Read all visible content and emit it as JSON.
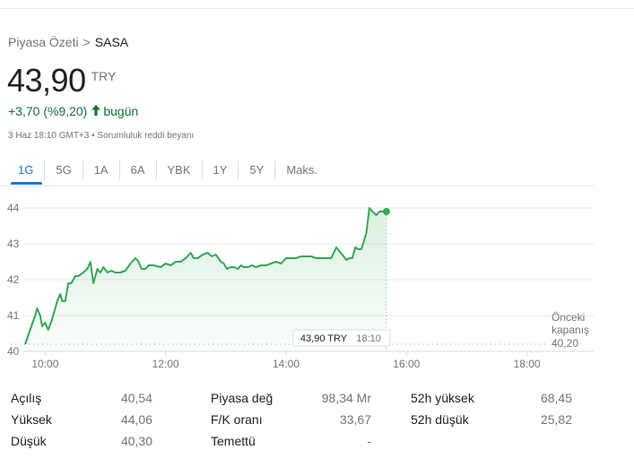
{
  "breadcrumb": {
    "parent": "Piyasa Özeti",
    "separator": ">",
    "current": "SASA"
  },
  "price": {
    "value": "43,90",
    "currency": "TRY"
  },
  "change": {
    "text": "+3,70 (%9,20)",
    "period": "bugün",
    "color": "#137333",
    "icon": "arrow-up-icon"
  },
  "meta": {
    "date": "3 Haz 18:10 GMT+3",
    "bullet": "•",
    "disclaimer": "Sorumluluk reddi beyanı"
  },
  "tabs": [
    {
      "label": "1G",
      "active": true
    },
    {
      "label": "5G",
      "active": false
    },
    {
      "label": "1A",
      "active": false
    },
    {
      "label": "6A",
      "active": false
    },
    {
      "label": "YBK",
      "active": false
    },
    {
      "label": "1Y",
      "active": false
    },
    {
      "label": "5Y",
      "active": false
    },
    {
      "label": "Maks.",
      "active": false
    }
  ],
  "chart_data": {
    "type": "area",
    "x_unit": "time of day",
    "xticks": [
      "10:00",
      "12:00",
      "14:00",
      "16:00",
      "18:00"
    ],
    "yticks": [
      "40",
      "41",
      "42",
      "43",
      "44"
    ],
    "ylim": [
      40,
      44.3
    ],
    "xlim": [
      "09:40",
      "18:20"
    ],
    "color": "#34a853",
    "previous_close": {
      "label_line1": "Önceki",
      "label_line2": "kapanış",
      "value": 40.2,
      "value_label": "40,20"
    },
    "tooltip": {
      "price": "43,90 TRY",
      "time": "18:10"
    },
    "series": [
      {
        "values": [
          [
            "09:40",
            40.2
          ],
          [
            "09:45",
            40.6
          ],
          [
            "09:50",
            41.0
          ],
          [
            "09:52",
            41.2
          ],
          [
            "09:55",
            41.0
          ],
          [
            "09:57",
            40.7
          ],
          [
            "10:00",
            40.8
          ],
          [
            "10:03",
            40.6
          ],
          [
            "10:07",
            40.9
          ],
          [
            "10:12",
            41.4
          ],
          [
            "10:15",
            41.6
          ],
          [
            "10:17",
            41.4
          ],
          [
            "10:20",
            41.4
          ],
          [
            "10:23",
            41.9
          ],
          [
            "10:26",
            41.9
          ],
          [
            "10:30",
            42.1
          ],
          [
            "10:33",
            42.1
          ],
          [
            "10:38",
            42.2
          ],
          [
            "10:42",
            42.3
          ],
          [
            "10:45",
            42.5
          ],
          [
            "10:48",
            41.9
          ],
          [
            "10:52",
            42.3
          ],
          [
            "10:55",
            42.2
          ],
          [
            "10:58",
            42.35
          ],
          [
            "11:02",
            42.2
          ],
          [
            "11:06",
            42.25
          ],
          [
            "11:10",
            42.2
          ],
          [
            "11:15",
            42.2
          ],
          [
            "11:20",
            42.25
          ],
          [
            "11:25",
            42.45
          ],
          [
            "11:30",
            42.6
          ],
          [
            "11:33",
            42.5
          ],
          [
            "11:36",
            42.3
          ],
          [
            "11:40",
            42.3
          ],
          [
            "11:43",
            42.4
          ],
          [
            "11:48",
            42.4
          ],
          [
            "11:55",
            42.35
          ],
          [
            "12:00",
            42.45
          ],
          [
            "12:05",
            42.4
          ],
          [
            "12:10",
            42.5
          ],
          [
            "12:15",
            42.5
          ],
          [
            "12:20",
            42.6
          ],
          [
            "12:25",
            42.75
          ],
          [
            "12:28",
            42.6
          ],
          [
            "12:32",
            42.6
          ],
          [
            "12:37",
            42.7
          ],
          [
            "12:42",
            42.75
          ],
          [
            "12:46",
            42.65
          ],
          [
            "12:50",
            42.7
          ],
          [
            "12:55",
            42.5
          ],
          [
            "12:58",
            42.45
          ],
          [
            "13:01",
            42.3
          ],
          [
            "13:05",
            42.35
          ],
          [
            "13:08",
            42.35
          ],
          [
            "13:12",
            42.3
          ],
          [
            "13:15",
            42.4
          ],
          [
            "13:18",
            42.35
          ],
          [
            "13:22",
            42.35
          ],
          [
            "13:26",
            42.4
          ],
          [
            "13:30",
            42.35
          ],
          [
            "13:35",
            42.4
          ],
          [
            "13:40",
            42.4
          ],
          [
            "13:45",
            42.45
          ],
          [
            "13:50",
            42.5
          ],
          [
            "13:55",
            42.45
          ],
          [
            "14:00",
            42.6
          ],
          [
            "14:05",
            42.6
          ],
          [
            "14:10",
            42.6
          ],
          [
            "14:15",
            42.65
          ],
          [
            "14:20",
            42.65
          ],
          [
            "14:25",
            42.65
          ],
          [
            "14:30",
            42.6
          ],
          [
            "14:35",
            42.6
          ],
          [
            "14:40",
            42.6
          ],
          [
            "14:45",
            42.6
          ],
          [
            "14:50",
            42.9
          ],
          [
            "14:53",
            42.8
          ],
          [
            "14:56",
            42.7
          ],
          [
            "15:00",
            42.55
          ],
          [
            "15:03",
            42.6
          ],
          [
            "15:06",
            42.6
          ],
          [
            "15:09",
            42.9
          ],
          [
            "15:12",
            42.85
          ],
          [
            "15:15",
            42.85
          ],
          [
            "15:20",
            43.3
          ],
          [
            "15:23",
            44.0
          ],
          [
            "15:26",
            43.9
          ],
          [
            "15:30",
            43.8
          ],
          [
            "15:33",
            43.9
          ],
          [
            "15:36",
            43.9
          ],
          [
            "15:40",
            43.9
          ]
        ]
      }
    ]
  },
  "stats": [
    {
      "label": "Açılış",
      "value": "40,54"
    },
    {
      "label": "Yüksek",
      "value": "44,06"
    },
    {
      "label": "Düşük",
      "value": "40,30"
    },
    {
      "label": "Piyasa değ",
      "value": "98,34 Mr"
    },
    {
      "label": "F/K oranı",
      "value": "33,67"
    },
    {
      "label": "Temettü",
      "value": "-"
    },
    {
      "label": "52h yüksek",
      "value": "68,45"
    },
    {
      "label": "52h düşük",
      "value": "25,82"
    }
  ]
}
